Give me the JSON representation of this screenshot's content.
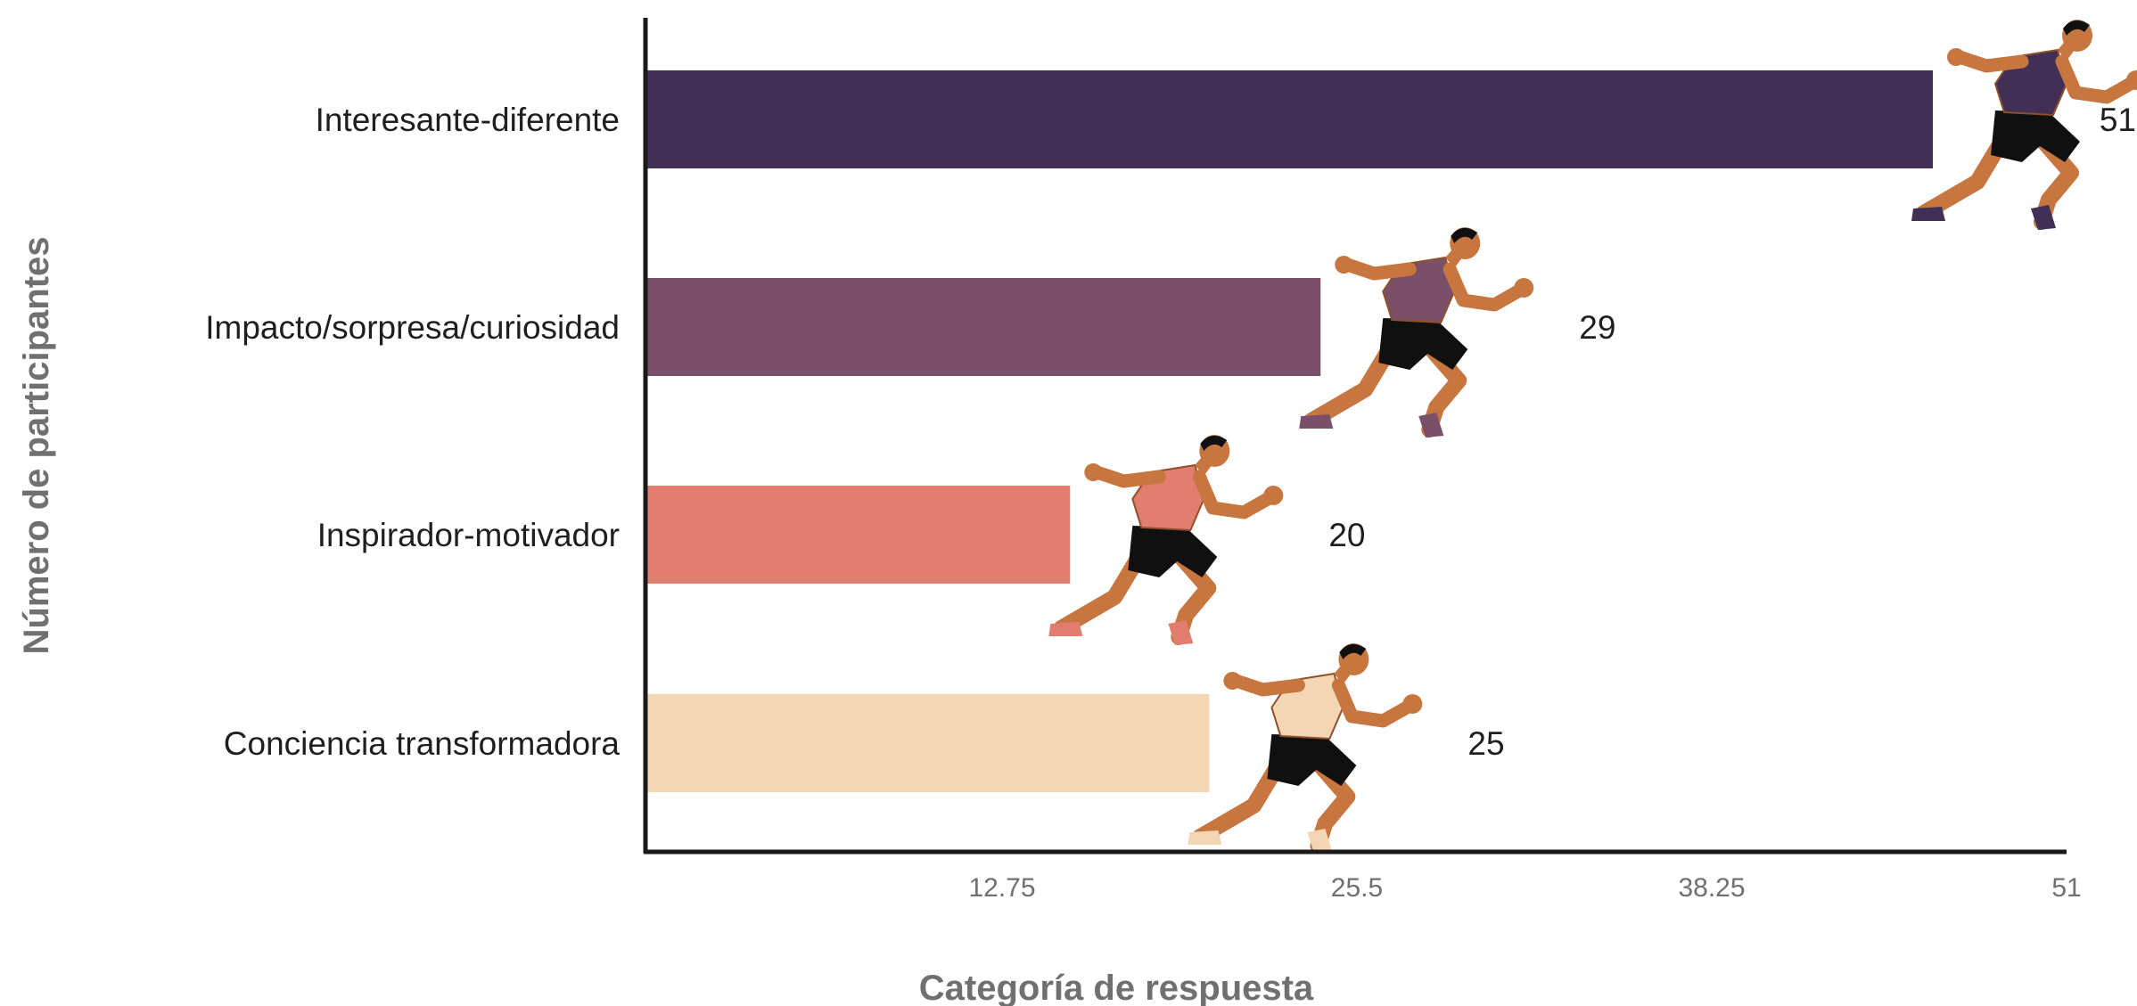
{
  "chart_data": {
    "type": "bar",
    "orientation": "horizontal",
    "categories": [
      "Interesante-diferente",
      "Impacto/sorpresa/curiosidad",
      "Inspirador-motivador",
      "Conciencia transformadora"
    ],
    "values": [
      51,
      29,
      20,
      25
    ],
    "colors": [
      "#412f55",
      "#7a5068",
      "#e27e70",
      "#f3d6b4"
    ],
    "xlabel": "Categoría de respuesta",
    "ylabel": "Número de participantes",
    "xlim": [
      0,
      51
    ],
    "xticks": [
      "12.75",
      "25.5",
      "38.25",
      "51"
    ],
    "xtick_values": [
      12.75,
      25.5,
      38.25,
      51
    ],
    "grid": false,
    "legend": "none",
    "marker_icon": "sprinter-icon"
  }
}
